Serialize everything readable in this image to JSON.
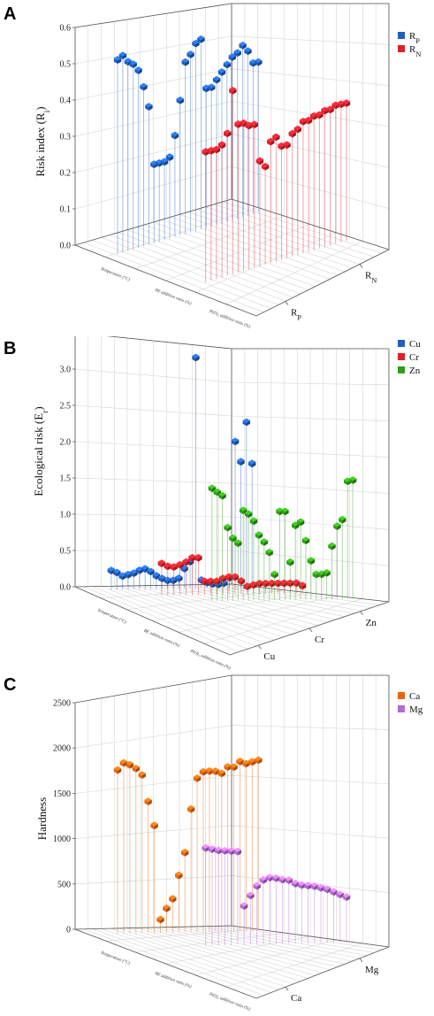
{
  "chart_data": [
    {
      "panel": "A",
      "type": "scatter",
      "ylabel": "Risk index (R",
      "ylabel_sub": "i",
      "ylim": [
        0.0,
        0.6
      ],
      "yticks": [
        "0.0",
        "0.1",
        "0.2",
        "0.3",
        "0.4",
        "0.5",
        "0.6"
      ],
      "floor_labels": [
        "Temperature (°C)",
        "BE addition ratio (%)",
        "P(O)₃ addition ratio (%)"
      ],
      "categories": [
        {
          "label": "R",
          "sub": "P"
        },
        {
          "label": "R",
          "sub": "N"
        }
      ],
      "series": [
        {
          "name": "R",
          "sub": "P",
          "color": "#1f5fbf",
          "values": [
            0.55,
            0.56,
            0.54,
            0.53,
            0.51,
            0.46,
            0.4,
            0.23,
            0.23,
            0.23,
            0.24,
            0.3,
            0.4,
            0.51,
            0.53,
            0.56,
            0.57,
            0.42,
            0.42,
            0.44,
            0.46,
            0.48,
            0.5,
            0.51,
            0.53,
            0.51,
            0.47,
            0.47
          ]
        },
        {
          "name": "R",
          "sub": "N",
          "color": "#e0202a",
          "values": [
            0.37,
            0.37,
            0.37,
            0.38,
            0.41,
            0.53,
            0.43,
            0.43,
            0.42,
            0.42,
            0.31,
            0.29,
            0.36,
            0.37,
            0.34,
            0.34,
            0.37,
            0.38,
            0.4,
            0.4,
            0.41,
            0.41,
            0.42,
            0.42,
            0.43,
            0.43,
            0.43
          ]
        }
      ]
    },
    {
      "panel": "B",
      "type": "scatter",
      "ylabel": "Ecological risk (E",
      "ylabel_sub": "r",
      "ylim": [
        0.0,
        3.5
      ],
      "yticks": [
        "0.0",
        "0.5",
        "1.0",
        "1.5",
        "2.0",
        "2.5",
        "3.0",
        "3.5"
      ],
      "floor_labels": [
        "Temperature (°C)",
        "BE addition ratio (%)",
        "P(O)₃ addition ratio (%)"
      ],
      "categories": [
        {
          "label": "Cu",
          "sub": ""
        },
        {
          "label": "Cr",
          "sub": ""
        },
        {
          "label": "Zn",
          "sub": ""
        }
      ],
      "series": [
        {
          "name": "Cu",
          "sub": "",
          "color": "#1f5fbf",
          "values": [
            0.28,
            0.25,
            0.2,
            0.22,
            0.24,
            0.28,
            0.3,
            0.26,
            0.2,
            0.16,
            0.13,
            0.13,
            0.16,
            0.3,
            0.4,
            3.4,
            0.13,
            0.09,
            0.07,
            0.06,
            0.08,
            0.16,
            2.2,
            1.9,
            2.5,
            1.88
          ]
        },
        {
          "name": "Cr",
          "sub": "",
          "color": "#e0202a",
          "values": [
            0.46,
            0.42,
            0.41,
            0.44,
            0.48,
            0.54,
            0.54,
            0.2,
            0.2,
            0.2,
            0.24,
            0.26,
            0.26,
            0.2,
            0.12,
            0.14,
            0.16,
            0.16,
            0.16,
            0.16,
            0.16,
            0.16,
            0.16,
            0.12
          ]
        },
        {
          "name": "Zn",
          "sub": "",
          "color": "#2e9e14",
          "values": [
            1.6,
            1.55,
            1.5,
            1.05,
            0.9,
            0.83,
            1.3,
            1.25,
            1.15,
            0.95,
            0.85,
            0.7,
            0.38,
            1.3,
            1.3,
            0.56,
            1.1,
            1.15,
            0.88,
            0.58,
            0.38,
            0.38,
            0.4,
            0.8,
            1.1,
            1.2,
            1.78,
            1.8
          ]
        }
      ]
    },
    {
      "panel": "C",
      "type": "scatter",
      "ylabel": "Hardness",
      "ylabel_sub": "",
      "ylim": [
        0,
        2500
      ],
      "yticks": [
        "0",
        "500",
        "1000",
        "1500",
        "2000",
        "2500"
      ],
      "floor_labels": [
        "Temperature (°C)",
        "BE addition ratio (%)",
        "P(O)₃ addition ratio (%)"
      ],
      "categories": [
        {
          "label": "Ca",
          "sub": ""
        },
        {
          "label": "Mg",
          "sub": ""
        }
      ],
      "series": [
        {
          "name": "Ca",
          "sub": "",
          "color": "#e8650f",
          "values": [
            1840,
            1910,
            1880,
            1830,
            1750,
            1450,
            1180,
            150,
            270,
            370,
            620,
            860,
            1320,
            1640,
            1700,
            1700,
            1690,
            1660,
            1720,
            1710,
            1760,
            1730,
            1740,
            1750
          ]
        },
        {
          "name": "Mg",
          "sub": "",
          "color": "#b36ad6",
          "values": [
            1100,
            1080,
            1060,
            1050,
            1040,
            1030,
            430,
            540,
            640,
            700,
            720,
            710,
            690,
            680,
            640,
            620,
            610,
            600,
            580,
            560,
            530,
            500,
            470
          ]
        }
      ]
    }
  ]
}
